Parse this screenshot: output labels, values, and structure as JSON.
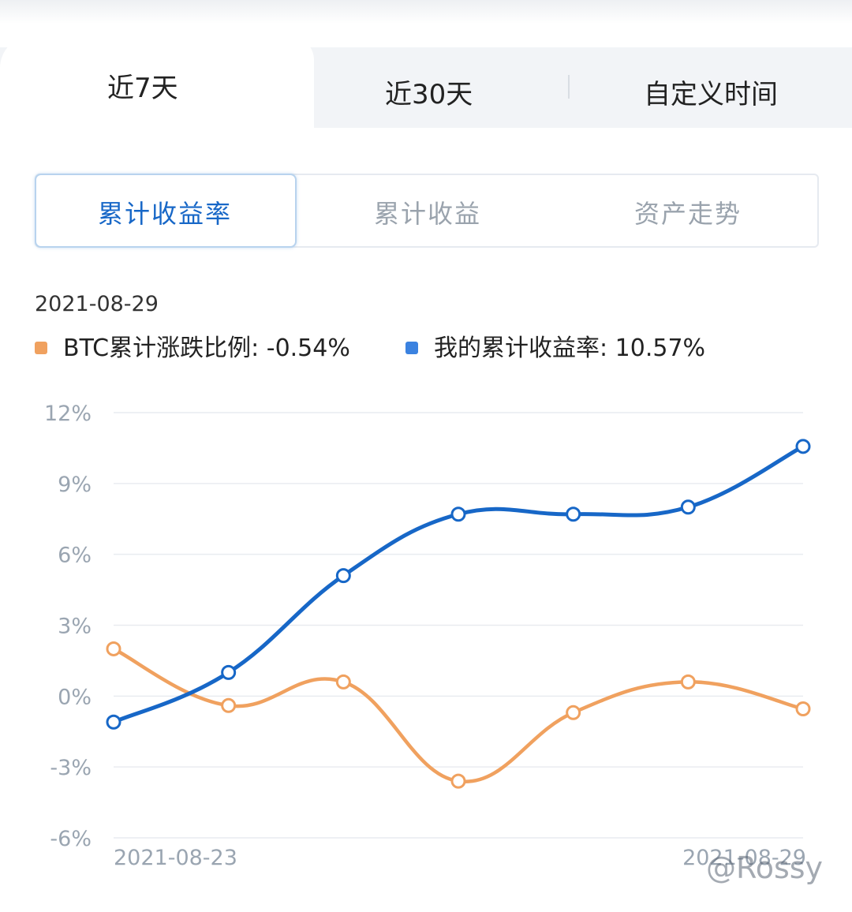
{
  "period_tabs": [
    "近7天",
    "近30天",
    "自定义时间"
  ],
  "metric_tabs": [
    "累计收益率",
    "累计收益",
    "资产走势"
  ],
  "tooltip": {
    "date": "2021-08-29",
    "btc_label": "BTC累计涨跌比例: -0.54%",
    "mine_label": "我的累计收益率: 10.57%"
  },
  "colors": {
    "btc": "#f0a15f",
    "mine": "#1767c7",
    "active_text": "#1767c7"
  },
  "watermark": "@Rossy",
  "chart_data": {
    "type": "line",
    "x": [
      "2021-08-23",
      "2021-08-24",
      "2021-08-25",
      "2021-08-26",
      "2021-08-27",
      "2021-08-28",
      "2021-08-29"
    ],
    "x_tick_labels": [
      "2021-08-23",
      "2021-08-29"
    ],
    "series": [
      {
        "name": "BTC累计涨跌比例",
        "values": [
          2.0,
          -0.4,
          0.6,
          -3.6,
          -0.7,
          0.6,
          -0.54
        ],
        "color": "#f0a15f"
      },
      {
        "name": "我的累计收益率",
        "values": [
          -1.1,
          1.0,
          5.1,
          7.7,
          7.7,
          8.0,
          10.57
        ],
        "color": "#1767c7"
      }
    ],
    "y_ticks": [
      "12%",
      "9%",
      "6%",
      "3%",
      "0%",
      "-3%",
      "-6%"
    ],
    "ylim": [
      -6,
      12
    ],
    "grid": true,
    "legend": "top-left"
  }
}
